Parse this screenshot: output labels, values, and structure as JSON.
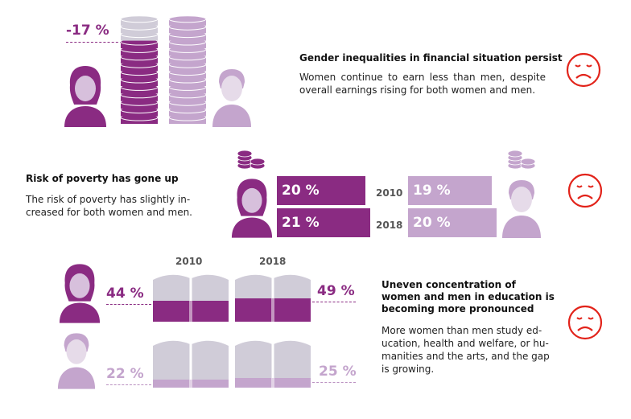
{
  "colors": {
    "dark_purple": "#8a2b82",
    "light_purple": "#c4a5cd",
    "grey": "#d0ccd8",
    "red": "#e2231a"
  },
  "section1": {
    "percent": "-17 %",
    "title": "Gender inequalities in financial situation persist",
    "body": "Women continue to earn less than men, despite overall earnings rising for both women and men."
  },
  "section2": {
    "title": "Risk of poverty has gone up",
    "body_line1": "The risk of poverty has slightly in-",
    "body_line2": "creased for both women and men.",
    "year_2010": "2010",
    "year_2018": "2018",
    "women_2010": "20 %",
    "women_2018": "21 %",
    "men_2010": "19 %",
    "men_2018": "20 %"
  },
  "section3": {
    "year_2010": "2010",
    "year_2018": "2018",
    "women_2010": "44 %",
    "women_2018": "49 %",
    "men_2010": "22 %",
    "men_2018": "25 %",
    "title_line1": "Uneven concentration of",
    "title_line2": "women and men in education is",
    "title_line3": "becoming more pronounced",
    "body_line1": "More women than men study ed-",
    "body_line2": "ucation, health and welfare, or hu-",
    "body_line3": "manities and the arts, and the gap",
    "body_line4": "is growing."
  }
}
